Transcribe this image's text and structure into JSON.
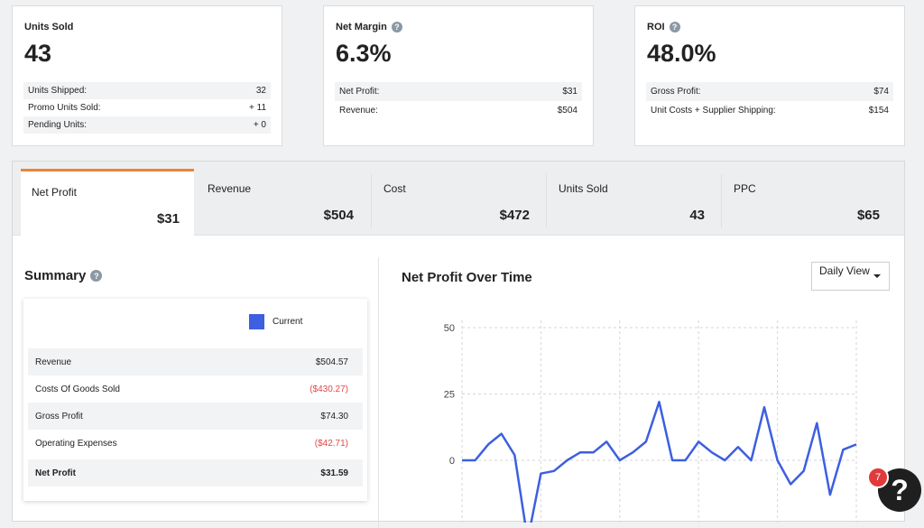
{
  "cards": [
    {
      "title": "Units Sold",
      "has_help": false,
      "value": "43",
      "rows": [
        {
          "label": "Units Shipped:",
          "value": "32"
        },
        {
          "label": "Promo Units Sold:",
          "value": "+ 11"
        },
        {
          "label": "Pending Units:",
          "value": "+ 0"
        }
      ]
    },
    {
      "title": "Net Margin",
      "has_help": true,
      "value": "6.3%",
      "rows": [
        {
          "label": "Net Profit:",
          "value": "$31"
        },
        {
          "label": "Revenue:",
          "value": "$504"
        }
      ]
    },
    {
      "title": "ROI",
      "has_help": true,
      "value": "48.0%",
      "rows": [
        {
          "label": "Gross Profit:",
          "value": "$74"
        },
        {
          "label": "Unit Costs + Supplier Shipping:",
          "value": "$154"
        }
      ]
    }
  ],
  "tabs": [
    {
      "label": "Net Profit",
      "value": "$31",
      "active": true
    },
    {
      "label": "Revenue",
      "value": "$504",
      "active": false
    },
    {
      "label": "Cost",
      "value": "$472",
      "active": false
    },
    {
      "label": "Units Sold",
      "value": "43",
      "active": false
    },
    {
      "label": "PPC",
      "value": "$65",
      "active": false
    }
  ],
  "summary": {
    "title": "Summary",
    "legend_label": "Current",
    "legend_color": "#3d5fe0",
    "rows": [
      {
        "label": "Revenue",
        "value": "$504.57",
        "negative": false
      },
      {
        "label": "Costs Of Goods Sold",
        "value": "($430.27)",
        "negative": true
      },
      {
        "label": "Gross Profit",
        "value": "$74.30",
        "negative": false
      },
      {
        "label": "Operating Expenses",
        "value": "($42.71)",
        "negative": true
      }
    ],
    "total": {
      "label": "Net Profit",
      "value": "$31.59"
    }
  },
  "chart_panel": {
    "title": "Net Profit Over Time",
    "view_select": "Daily View"
  },
  "chart_data": {
    "type": "line",
    "title": "Net Profit Over Time",
    "xlabel": "",
    "ylabel": "",
    "ylim": [
      -25,
      50
    ],
    "y_ticks": [
      50,
      25,
      0
    ],
    "grid": true,
    "line_color": "#3d5fe0",
    "series": [
      {
        "values": [
          0,
          0,
          6,
          10,
          2,
          -30,
          -5,
          -4,
          0,
          3,
          3,
          7,
          0,
          3,
          7,
          22,
          0,
          0,
          7,
          3,
          0,
          5,
          0,
          20,
          0,
          -9,
          -4,
          14,
          -13,
          4,
          6
        ]
      }
    ]
  },
  "help": {
    "badge": "7",
    "icon": "question-mark-icon"
  }
}
